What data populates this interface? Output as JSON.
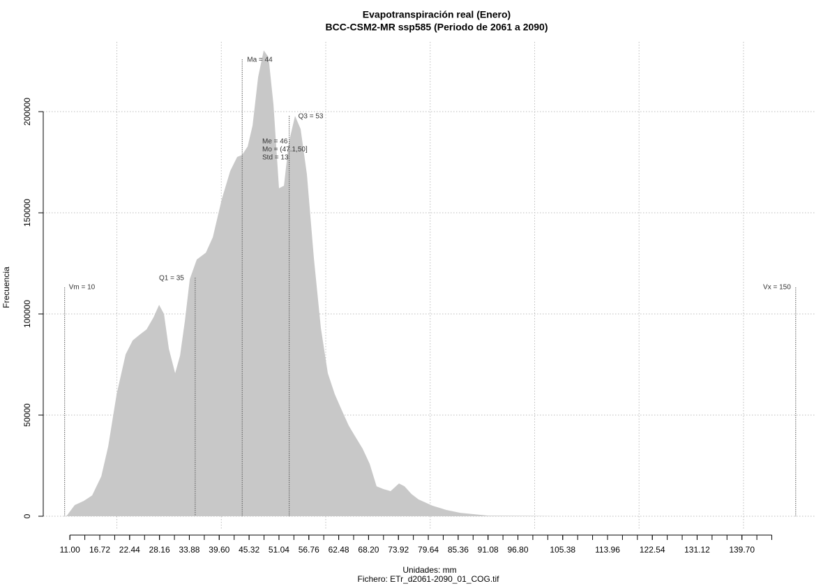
{
  "chart_data": {
    "type": "area",
    "title": "Evapotranspiración real (Enero)",
    "subtitle": "BCC-CSM2-MR ssp585 (Periodo de 2061 a 2090)",
    "xlabel": "Unidades: mm",
    "caption": "Fichero: ETr_d2061-2090_01_COG.tif",
    "ylabel": "Frecuencia",
    "color": "#c8c8c8",
    "x": [
      10.33,
      11.93,
      13.67,
      15.27,
      17.01,
      18.34,
      19.95,
      21.68,
      23.02,
      24.35,
      25.69,
      27.02,
      28.09,
      29.02,
      29.96,
      31.16,
      32.09,
      33.03,
      33.96,
      35.3,
      37.03,
      38.37,
      40.11,
      41.71,
      43.04,
      43.98,
      45.05,
      45.98,
      47.05,
      48.12,
      49.05,
      49.99,
      51.05,
      51.99,
      52.92,
      54.12,
      55.19,
      56.39,
      57.73,
      59.06,
      60.4,
      61.73,
      63.07,
      64.4,
      65.74,
      67.07,
      68.41,
      69.74,
      71.08,
      72.42,
      74.02,
      75.09,
      76.42,
      77.76,
      80.43,
      83.1,
      85.77,
      88.44,
      91.11,
      99.12,
      104.46,
      148.52
    ],
    "values": [
      0,
      5500,
      7600,
      10300,
      19700,
      34500,
      60300,
      80000,
      86900,
      89700,
      92400,
      98300,
      104500,
      100000,
      82800,
      70700,
      79300,
      96600,
      117200,
      126900,
      130300,
      137900,
      156900,
      170700,
      177600,
      178600,
      182800,
      193100,
      217200,
      230300,
      226900,
      203400,
      162100,
      163400,
      184500,
      197900,
      191400,
      169000,
      127600,
      93100,
      70700,
      60300,
      52400,
      44800,
      39000,
      33400,
      25900,
      14800,
      13400,
      12400,
      16200,
      14800,
      11000,
      8300,
      5200,
      3100,
      1700,
      1000,
      300,
      200,
      0,
      0
    ],
    "xlim": [
      5.9,
      153.9
    ],
    "ylim": [
      -6900,
      234500
    ],
    "xticks": [
      {
        "value": 11,
        "label": "11.00"
      },
      {
        "value": 16.72,
        "label": "16.72"
      },
      {
        "value": 22.44,
        "label": "22.44"
      },
      {
        "value": 28.16,
        "label": "28.16"
      },
      {
        "value": 33.88,
        "label": "33.88"
      },
      {
        "value": 39.6,
        "label": "39.60"
      },
      {
        "value": 45.32,
        "label": "45.32"
      },
      {
        "value": 51.04,
        "label": "51.04"
      },
      {
        "value": 56.76,
        "label": "56.76"
      },
      {
        "value": 62.48,
        "label": "62.48"
      },
      {
        "value": 68.2,
        "label": "68.20"
      },
      {
        "value": 73.92,
        "label": "73.92"
      },
      {
        "value": 79.64,
        "label": "79.64"
      },
      {
        "value": 85.36,
        "label": "85.36"
      },
      {
        "value": 91.08,
        "label": "91.08"
      },
      {
        "value": 96.8,
        "label": "96.80"
      },
      {
        "value": 105.38,
        "label": "105.38"
      },
      {
        "value": 113.96,
        "label": "113.96"
      },
      {
        "value": 122.54,
        "label": "122.54"
      },
      {
        "value": 131.12,
        "label": "131.12"
      },
      {
        "value": 139.7,
        "label": "139.70"
      }
    ],
    "xminor_ticks": [
      11,
      13.86,
      16.72,
      19.58,
      22.44,
      25.3,
      28.16,
      31.02,
      33.88,
      36.74,
      39.6,
      42.46,
      45.32,
      48.18,
      51.04,
      53.9,
      56.76,
      59.62,
      62.48,
      65.34,
      68.2,
      71.06,
      73.92,
      76.78,
      79.64,
      82.5,
      85.36,
      88.22,
      91.08,
      93.94,
      96.8,
      99.66,
      102.52,
      105.38,
      108.24,
      111.1,
      113.96,
      116.82,
      119.68,
      122.54,
      125.4,
      128.26,
      131.12,
      133.98,
      136.84,
      139.7,
      142.56,
      145.42
    ],
    "yticks": [
      0,
      50000,
      100000,
      150000,
      200000
    ],
    "xgrid": [
      20,
      40,
      60,
      80,
      100,
      120,
      140
    ],
    "grid": true,
    "markers": [
      {
        "label": "Vm = 10",
        "value": 10
      },
      {
        "label": "Q1 = 35",
        "value": 35
      },
      {
        "label": "Ma = 44",
        "value": 44
      },
      {
        "label": "Q3 = 53",
        "value": 53
      },
      {
        "label": "Vx = 150",
        "value": 150
      }
    ],
    "stats": [
      "Me = 46",
      "Mo = (47.1,50]",
      "Std = 13"
    ]
  }
}
